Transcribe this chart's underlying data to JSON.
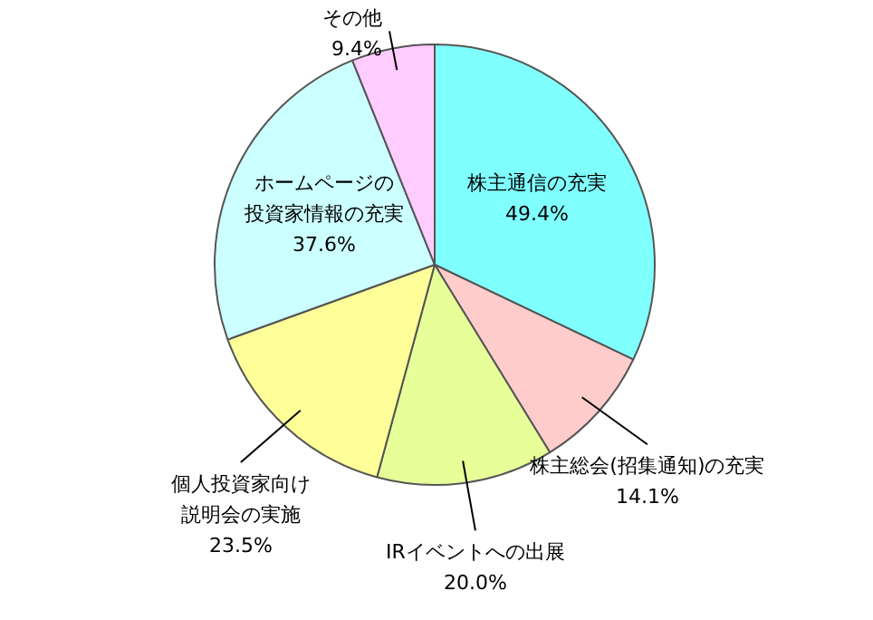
{
  "chart_data": {
    "type": "pie",
    "categories": [
      "株主通信の充実",
      "株主総会(招集通知)の充実",
      "IRイベントへの出展",
      "個人投資家向け説明会の実施",
      "ホームページの投資家情報の充実",
      "その他"
    ],
    "values": [
      49.4,
      14.1,
      20.0,
      23.5,
      37.6,
      9.4
    ],
    "value_labels": [
      "49.4%",
      "14.1%",
      "20.0%",
      "23.5%",
      "37.6%",
      "9.4%"
    ],
    "colors": [
      "#80ffff",
      "#ffcccc",
      "#e6ff99",
      "#ffff99",
      "#ccffff",
      "#ffccff"
    ]
  }
}
